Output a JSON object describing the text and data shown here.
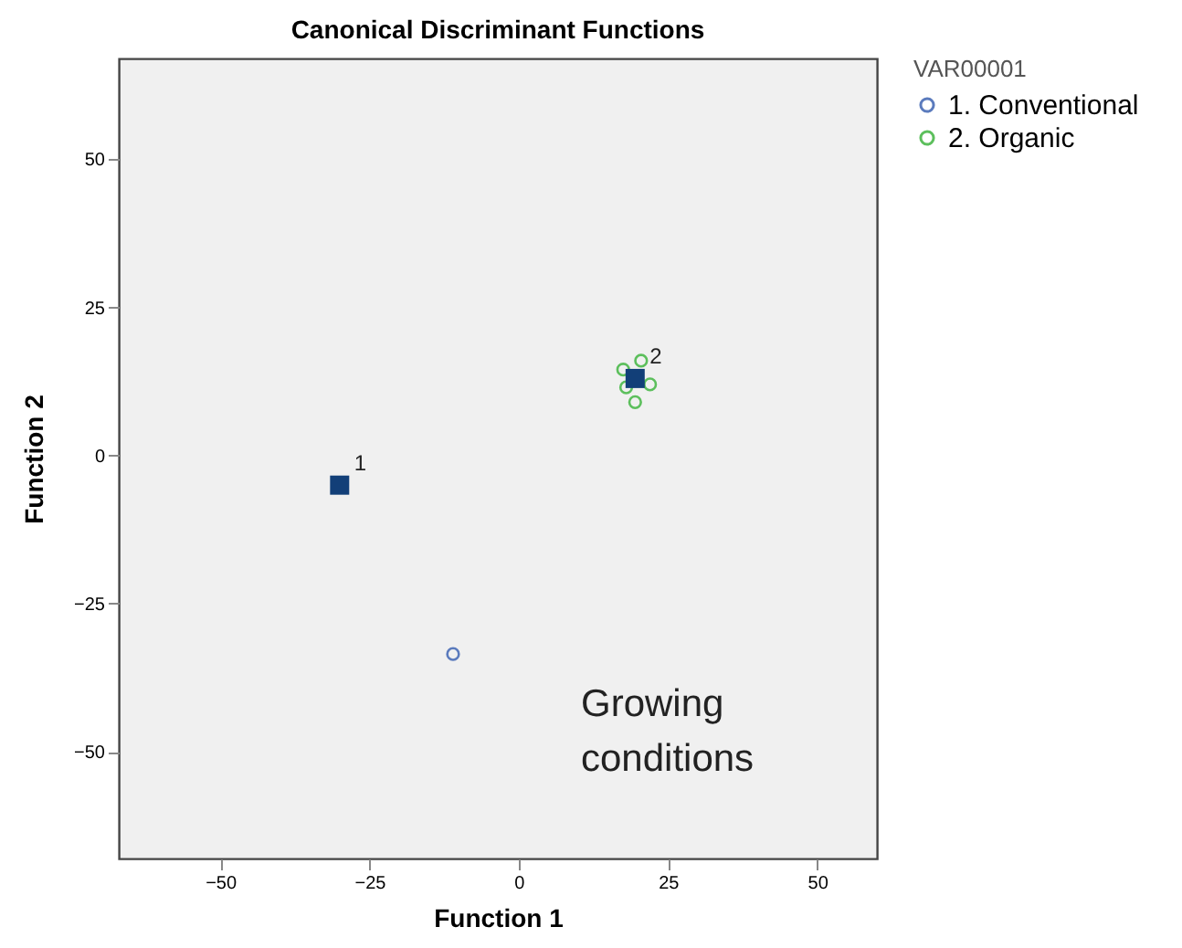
{
  "chart_data": {
    "type": "scatter",
    "title": "Canonical Discriminant Functions",
    "xlabel": "Function 1",
    "ylabel": "Function 2",
    "legend_title": "VAR00001",
    "series": [
      {
        "name": "1. Conventional",
        "color": "#5b7bbd",
        "marker": "circle",
        "x": [
          -11
        ],
        "values": [
          -33.5
        ]
      },
      {
        "name": "2. Organic",
        "color": "#5cbf5c",
        "marker": "circle",
        "x": [
          17.5,
          20.5,
          19.5,
          22,
          18
        ],
        "values": [
          14.5,
          16,
          9,
          12,
          11.5
        ]
      },
      {
        "color": "#123f78",
        "marker": "square",
        "x": [
          -30,
          19.5
        ],
        "values": [
          -5,
          13
        ]
      }
    ],
    "annotations": [
      {
        "text": "1",
        "x": -30,
        "y": -5
      },
      {
        "text": "2",
        "x": 19.5,
        "y": 13
      },
      "Growing conditions"
    ],
    "xlim": [
      -67,
      60
    ],
    "ylim": [
      -68,
      67
    ],
    "xticks": [
      -50,
      -25,
      0,
      25,
      50
    ],
    "yticks": [
      -50,
      -25,
      0,
      25,
      50
    ],
    "grid": false,
    "legend": "right"
  }
}
